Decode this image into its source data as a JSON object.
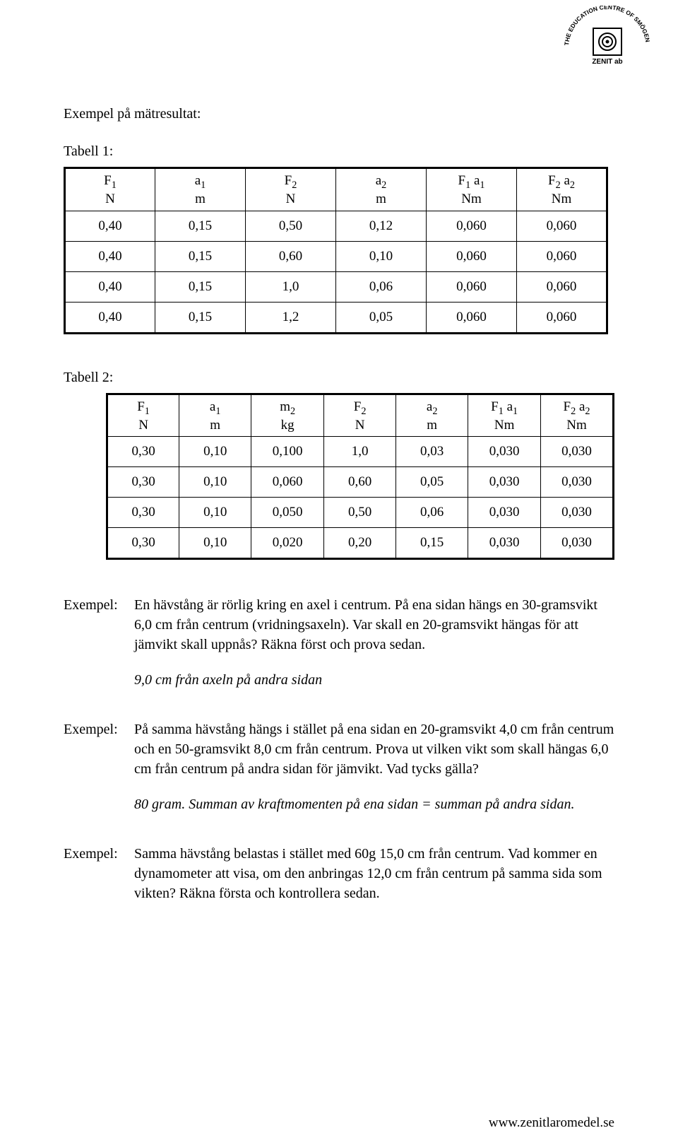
{
  "logo": {
    "top_arc": "THE EDUCATION CENTRE OF SMÖGEN",
    "brand": "ZENIT ab"
  },
  "section_title": "Exempel på mätresultat:",
  "table1": {
    "label": "Tabell 1:",
    "headers": [
      {
        "sym": "F",
        "sub": "1",
        "unit": "N"
      },
      {
        "sym": "a",
        "sub": "1",
        "unit": "m"
      },
      {
        "sym": "F",
        "sub": "2",
        "unit": "N"
      },
      {
        "sym": "a",
        "sub": "2",
        "unit": "m"
      },
      {
        "sym": "F₁ a₁",
        "sub": "",
        "unit": "Nm",
        "plain": "F1 a1"
      },
      {
        "sym": "F₂ a₂",
        "sub": "",
        "unit": "Nm",
        "plain": "F2 a2"
      }
    ],
    "rows": [
      [
        "0,40",
        "0,15",
        "0,50",
        "0,12",
        "0,060",
        "0,060"
      ],
      [
        "0,40",
        "0,15",
        "0,60",
        "0,10",
        "0,060",
        "0,060"
      ],
      [
        "0,40",
        "0,15",
        "1,0",
        "0,06",
        "0,060",
        "0,060"
      ],
      [
        "0,40",
        "0,15",
        "1,2",
        "0,05",
        "0,060",
        "0,060"
      ]
    ]
  },
  "table2": {
    "label": "Tabell 2:",
    "headers": [
      {
        "sym": "F",
        "sub": "1",
        "unit": "N"
      },
      {
        "sym": "a",
        "sub": "1",
        "unit": "m"
      },
      {
        "sym": "m",
        "sub": "2",
        "unit": "kg"
      },
      {
        "sym": "F",
        "sub": "2",
        "unit": "N"
      },
      {
        "sym": "a",
        "sub": "2",
        "unit": "m"
      },
      {
        "sym": "F₁ a₁",
        "sub": "",
        "unit": "Nm",
        "plain": "F1 a1"
      },
      {
        "sym": "F₂ a₂",
        "sub": "",
        "unit": "Nm",
        "plain": "F2 a2"
      }
    ],
    "rows": [
      [
        "0,30",
        "0,10",
        "0,100",
        "1,0",
        "0,03",
        "0,030",
        "0,030"
      ],
      [
        "0,30",
        "0,10",
        "0,060",
        "0,60",
        "0,05",
        "0,030",
        "0,030"
      ],
      [
        "0,30",
        "0,10",
        "0,050",
        "0,50",
        "0,06",
        "0,030",
        "0,030"
      ],
      [
        "0,30",
        "0,10",
        "0,020",
        "0,20",
        "0,15",
        "0,030",
        "0,030"
      ]
    ]
  },
  "examples": [
    {
      "label": "Exempel:",
      "text": "En hävstång är rörlig kring en axel i centrum. På ena sidan hängs en 30-gramsvikt 6,0 cm från centrum (vridningsaxeln). Var skall en 20-gramsvikt hängas för att jämvikt skall uppnås? Räkna först och prova sedan.",
      "answer": "9,0 cm från axeln på andra sidan"
    },
    {
      "label": "Exempel:",
      "text": "På samma hävstång hängs i stället på ena sidan en 20-gramsvikt 4,0 cm från centrum och en 50-gramsvikt 8,0 cm från centrum. Prova ut vilken vikt som skall hängas 6,0 cm från centrum på andra sidan för jämvikt.  Vad tycks gälla?",
      "answer": "80 gram. Summan av kraftmomenten på ena sidan = summan på andra sidan."
    },
    {
      "label": "Exempel:",
      "text": "Samma hävstång belastas i stället med 60g 15,0 cm från centrum. Vad kommer en dynamometer att visa, om den anbringas 12,0 cm från centrum på samma sida som vikten? Räkna första och kontrollera sedan.",
      "answer": ""
    }
  ],
  "footer": "www.zenitlaromedel.se"
}
